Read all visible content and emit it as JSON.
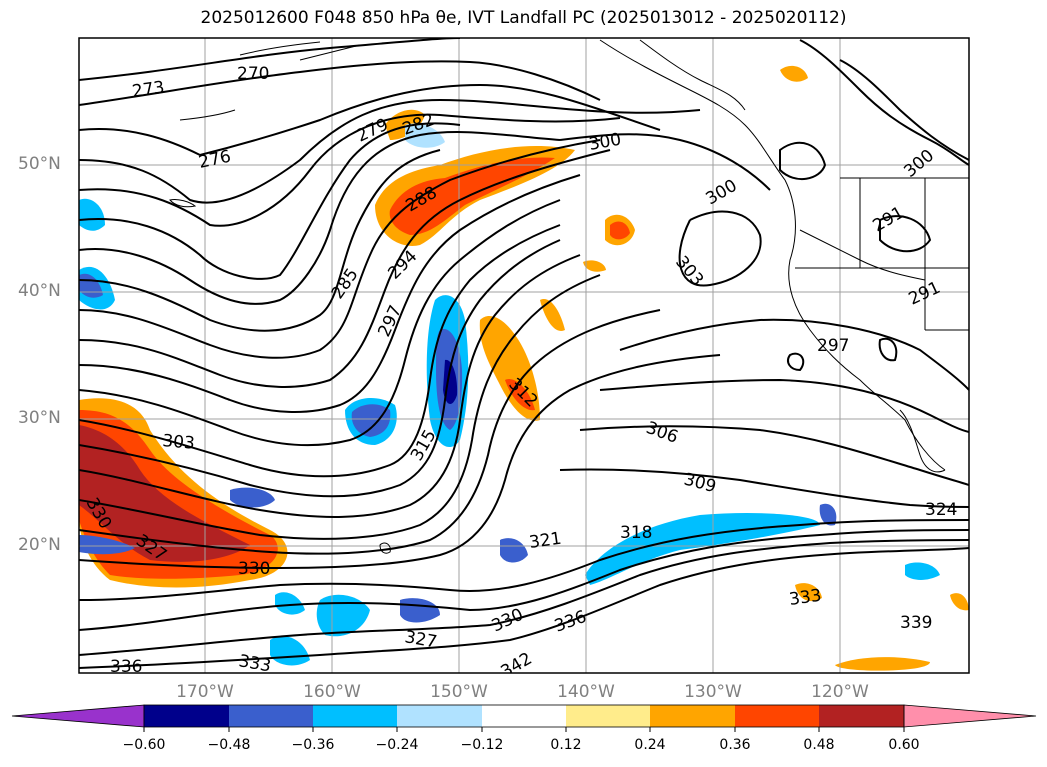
{
  "title": "2025012600 F048 850 hPa θe, IVT Landfall PC (2025013012 - 2025020112)",
  "axes": {
    "lat_ticks": [
      "50°N",
      "40°N",
      "30°N",
      "20°N"
    ],
    "lon_ticks": [
      "170°W",
      "160°W",
      "150°W",
      "140°W",
      "130°W",
      "120°W"
    ]
  },
  "colorbar": {
    "tick_labels": [
      "−0.60",
      "−0.48",
      "−0.36",
      "−0.24",
      "−0.12",
      "0.12",
      "0.24",
      "0.36",
      "0.48",
      "0.60"
    ],
    "colors": [
      "#9932cc",
      "#00008b",
      "#3a5fcd",
      "#00bfff",
      "#b0e2ff",
      "#ffffff",
      "#ffec8b",
      "#ffa500",
      "#ff4500",
      "#b22222",
      "#ff8fab"
    ]
  },
  "contour_labels": [
    "270",
    "273",
    "276",
    "279",
    "282",
    "285",
    "288",
    "294",
    "297",
    "300",
    "300",
    "300",
    "303",
    "303",
    "306",
    "309",
    "312",
    "315",
    "318",
    "321",
    "324",
    "327",
    "327",
    "330",
    "330",
    "330",
    "333",
    "333",
    "336",
    "336",
    "339",
    "342",
    "291",
    "291",
    "297"
  ]
}
